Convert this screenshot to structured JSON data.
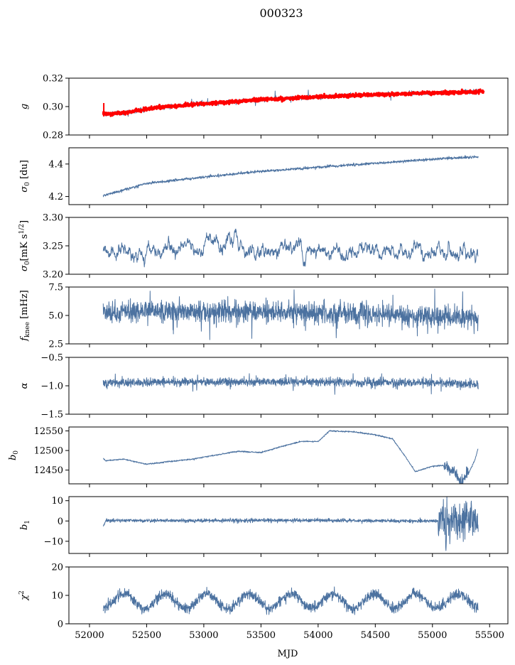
{
  "figure": {
    "suptitle": "000323",
    "xlabel": "MJD"
  },
  "colors": {
    "series": "#4c72a0",
    "overlay": "#ff0000",
    "axes": "#000000"
  },
  "chart_data": [
    {
      "type": "line",
      "key": "g",
      "ylabel": "g",
      "ylabel_italic": true,
      "ylim": [
        0.28,
        0.32
      ],
      "yticks": [
        0.28,
        0.3,
        0.32
      ],
      "ytick_labels": [
        "0.28",
        "0.30",
        "0.32"
      ],
      "xlim": [
        51820,
        55660
      ],
      "series": [
        {
          "role": "data",
          "style": "noisy",
          "seed": 11,
          "noise": 0.0007,
          "spike_rate": 0.01,
          "spike_amp": 0.003,
          "x_range": [
            52120,
            55400
          ],
          "anchors": [
            [
              52120,
              0.2945
            ],
            [
              52300,
              0.2955
            ],
            [
              52600,
              0.2995
            ],
            [
              53000,
              0.302
            ],
            [
              53500,
              0.3048
            ],
            [
              54000,
              0.3068
            ],
            [
              54500,
              0.3085
            ],
            [
              55000,
              0.3095
            ],
            [
              55400,
              0.3105
            ]
          ]
        },
        {
          "role": "overlay",
          "style": "band",
          "seed": 12,
          "noise": 0.0006,
          "x_range": [
            52120,
            55450
          ],
          "anchors": [
            [
              52120,
              0.295
            ],
            [
              52300,
              0.2955
            ],
            [
              52600,
              0.2995
            ],
            [
              53000,
              0.302
            ],
            [
              53500,
              0.3048
            ],
            [
              54000,
              0.3068
            ],
            [
              54500,
              0.3085
            ],
            [
              55000,
              0.3095
            ],
            [
              55450,
              0.3105
            ]
          ]
        }
      ]
    },
    {
      "type": "line",
      "key": "sigma0",
      "ylabel": "σ0 [du]",
      "ylim": [
        4.15,
        4.5
      ],
      "yticks": [
        4.2,
        4.4
      ],
      "ytick_labels": [
        "4.2",
        "4.4"
      ],
      "xlim": [
        51820,
        55660
      ],
      "series": [
        {
          "role": "data",
          "style": "noisy",
          "seed": 21,
          "noise": 0.004,
          "x_range": [
            52120,
            55400
          ],
          "anchors": [
            [
              52120,
              4.205
            ],
            [
              52500,
              4.28
            ],
            [
              53000,
              4.32
            ],
            [
              53500,
              4.355
            ],
            [
              54000,
              4.38
            ],
            [
              54500,
              4.405
            ],
            [
              55000,
              4.43
            ],
            [
              55400,
              4.445
            ]
          ]
        }
      ]
    },
    {
      "type": "line",
      "key": "sigma0_rms",
      "ylabel": "σ0[mK s^1/2]",
      "ylim": [
        3.2,
        3.3
      ],
      "yticks": [
        3.2,
        3.25,
        3.3
      ],
      "ytick_labels": [
        "3.20",
        "3.25",
        "3.30"
      ],
      "xlim": [
        51820,
        55660
      ],
      "series": [
        {
          "role": "data",
          "style": "walk",
          "seed": 31,
          "noise": 0.004,
          "revert": 0.12,
          "base": 3.24,
          "x_range": [
            52120,
            55400
          ],
          "anchors": [
            [
              52120,
              3.235
            ],
            [
              52500,
              3.24
            ],
            [
              53000,
              3.245
            ],
            [
              53250,
              3.255
            ],
            [
              53500,
              3.245
            ],
            [
              54000,
              3.243
            ],
            [
              54500,
              3.245
            ],
            [
              55000,
              3.24
            ],
            [
              55400,
              3.238
            ]
          ],
          "features": [
            [
              52480,
              3.208,
              25
            ],
            [
              53280,
              3.28,
              20
            ],
            [
              53030,
              3.262,
              30
            ]
          ]
        }
      ]
    },
    {
      "type": "line",
      "key": "fknee",
      "ylabel": "fknee [mHz]",
      "ylim": [
        2.5,
        7.5
      ],
      "yticks": [
        2.5,
        5.0,
        7.5
      ],
      "ytick_labels": [
        "2.5",
        "5.0",
        "7.5"
      ],
      "xlim": [
        51820,
        55660
      ],
      "series": [
        {
          "role": "data",
          "style": "noisy",
          "seed": 41,
          "noise": 0.45,
          "spike_rate": 0.02,
          "spike_amp": 1.3,
          "x_range": [
            52120,
            55400
          ],
          "anchors": [
            [
              52120,
              5.3
            ],
            [
              52700,
              5.4
            ],
            [
              53300,
              5.3
            ],
            [
              54000,
              5.2
            ],
            [
              54700,
              5.0
            ],
            [
              55400,
              4.8
            ]
          ]
        }
      ]
    },
    {
      "type": "line",
      "key": "alpha",
      "ylabel": "α",
      "ylabel_italic": true,
      "ylim": [
        -1.5,
        -0.5
      ],
      "yticks": [
        -1.5,
        -1.0,
        -0.5
      ],
      "ytick_labels": [
        "−1.5",
        "−1.0",
        "−0.5"
      ],
      "xlim": [
        51820,
        55660
      ],
      "series": [
        {
          "role": "data",
          "style": "noisy",
          "seed": 51,
          "noise": 0.035,
          "spike_rate": 0.015,
          "spike_amp": 0.12,
          "x_range": [
            52120,
            55400
          ],
          "anchors": [
            [
              52120,
              -0.95
            ],
            [
              53000,
              -0.93
            ],
            [
              54000,
              -0.93
            ],
            [
              55000,
              -0.95
            ],
            [
              55400,
              -0.98
            ]
          ]
        }
      ]
    },
    {
      "type": "line",
      "key": "b0",
      "ylabel": "b0",
      "ylim": [
        12415,
        12560
      ],
      "yticks": [
        12450,
        12500,
        12550
      ],
      "ytick_labels": [
        "12450",
        "12500",
        "12550"
      ],
      "xlim": [
        51820,
        55660
      ],
      "series": [
        {
          "role": "data",
          "style": "noisy",
          "seed": 61,
          "noise": 0.8,
          "x_range": [
            52120,
            55400
          ],
          "anchors": [
            [
              52120,
              12480
            ],
            [
              52140,
              12474
            ],
            [
              52300,
              12478
            ],
            [
              52500,
              12465
            ],
            [
              52700,
              12472
            ],
            [
              52900,
              12478
            ],
            [
              53100,
              12488
            ],
            [
              53300,
              12498
            ],
            [
              53500,
              12495
            ],
            [
              53700,
              12512
            ],
            [
              53850,
              12523
            ],
            [
              54000,
              12523
            ],
            [
              54100,
              12550
            ],
            [
              54300,
              12548
            ],
            [
              54500,
              12540
            ],
            [
              54650,
              12530
            ],
            [
              54750,
              12490
            ],
            [
              54850,
              12446
            ],
            [
              55000,
              12460
            ],
            [
              55100,
              12462
            ],
            [
              55200,
              12440
            ],
            [
              55260,
              12422
            ],
            [
              55330,
              12450
            ],
            [
              55370,
              12475
            ],
            [
              55400,
              12505
            ]
          ],
          "features_noise": [
            [
              55100,
              55320,
              8
            ]
          ]
        }
      ]
    },
    {
      "type": "line",
      "key": "b1",
      "ylabel": "b1",
      "ylim": [
        -16,
        12
      ],
      "yticks": [
        -10,
        0,
        10
      ],
      "ytick_labels": [
        "−10",
        "0",
        "10"
      ],
      "xlim": [
        51820,
        55660
      ],
      "series": [
        {
          "role": "data",
          "style": "noisy",
          "seed": 71,
          "noise": 0.45,
          "x_range": [
            52120,
            55400
          ],
          "anchors": [
            [
              52120,
              -2.5
            ],
            [
              52140,
              0.2
            ],
            [
              53000,
              0.2
            ],
            [
              54000,
              0.3
            ],
            [
              54800,
              0.0
            ],
            [
              55400,
              0.0
            ]
          ],
          "features_noise": [
            [
              55050,
              55400,
              4
            ]
          ],
          "features": [
            [
              55120,
              -14,
              6
            ],
            [
              55080,
              6,
              5
            ],
            [
              55220,
              -10,
              6
            ],
            [
              55300,
              10,
              5
            ],
            [
              55340,
              9,
              5
            ]
          ]
        }
      ]
    },
    {
      "type": "line",
      "key": "chi2",
      "ylabel": "χ2",
      "ylim": [
        0,
        20
      ],
      "yticks": [
        0,
        10,
        20
      ],
      "ytick_labels": [
        "0",
        "10",
        "20"
      ],
      "xlim": [
        51820,
        55660
      ],
      "xticks": [
        52000,
        52500,
        53000,
        53500,
        54000,
        54500,
        55000,
        55500
      ],
      "xtick_labels": [
        "52000",
        "52500",
        "53000",
        "53500",
        "54000",
        "54500",
        "55000",
        "55500"
      ],
      "series": [
        {
          "role": "data",
          "style": "seasonal",
          "seed": 81,
          "noise": 0.9,
          "base": 8.0,
          "amp": 2.5,
          "period": 365.25,
          "phase": 52300,
          "x_range": [
            52120,
            55400
          ]
        }
      ]
    }
  ]
}
